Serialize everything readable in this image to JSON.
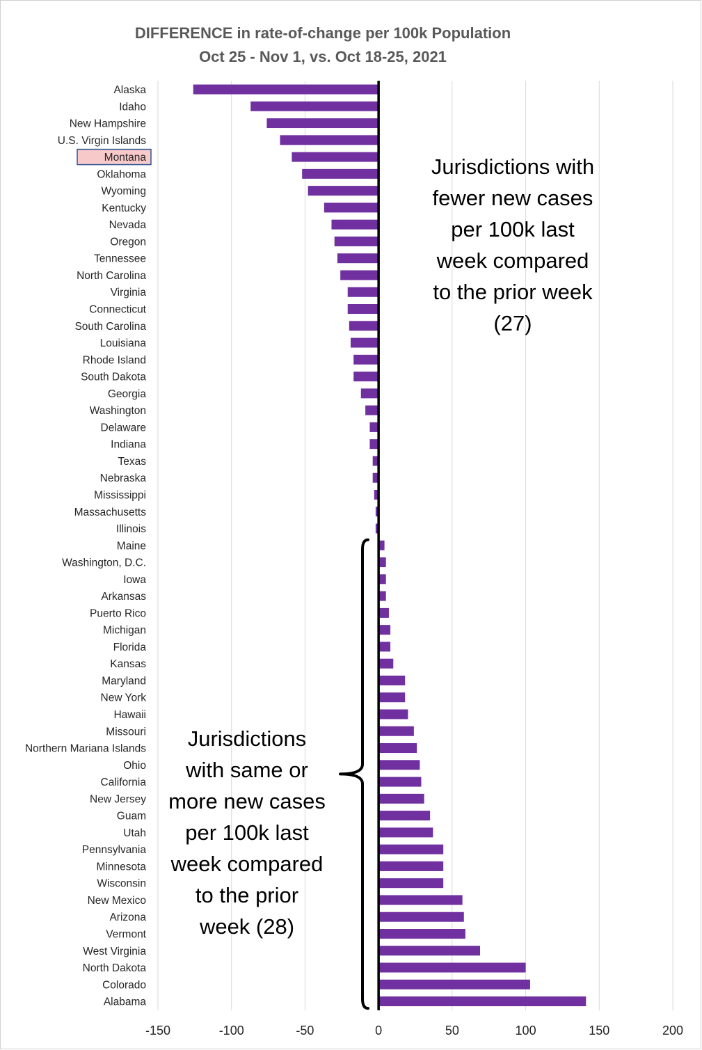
{
  "chart_data": {
    "type": "bar",
    "orientation": "horizontal",
    "title": "DIFFERENCE in rate-of-change per 100k Population",
    "subtitle": "Oct 25 - Nov 1, vs. Oct 18-25, 2021",
    "xlim": [
      -150,
      200
    ],
    "xticks": [
      "-150",
      "-100",
      "-50",
      "0",
      "50",
      "100",
      "150",
      "200"
    ],
    "xtick_values": [
      -150,
      -100,
      -50,
      0,
      50,
      100,
      150,
      200
    ],
    "grid": true,
    "bar_color": "#7030a0",
    "highlight_color": "#f8c9c9",
    "highlighted_category": "Montana",
    "categories": [
      "Alaska",
      "Idaho",
      "New Hampshire",
      "U.S. Virgin Islands",
      "Montana",
      "Oklahoma",
      "Wyoming",
      "Kentucky",
      "Nevada",
      "Oregon",
      "Tennessee",
      "North Carolina",
      "Virginia",
      "Connecticut",
      "South Carolina",
      "Louisiana",
      "Rhode Island",
      "South Dakota",
      "Georgia",
      "Washington",
      "Delaware",
      "Indiana",
      "Texas",
      "Nebraska",
      "Mississippi",
      "Massachusetts",
      "Illinois",
      "Maine",
      "Washington, D.C.",
      "Iowa",
      "Arkansas",
      "Puerto Rico",
      "Michigan",
      "Florida",
      "Kansas",
      "Maryland",
      "New York",
      "Hawaii",
      "Missouri",
      "Northern Mariana Islands",
      "Ohio",
      "California",
      "New Jersey",
      "Guam",
      "Utah",
      "Pennsylvania",
      "Minnesota",
      "Wisconsin",
      "New Mexico",
      "Arizona",
      "Vermont",
      "West Virginia",
      "North Dakota",
      "Colorado",
      "Alabama"
    ],
    "values": [
      -126,
      -87,
      -76,
      -67,
      -59,
      -52,
      -48,
      -37,
      -32,
      -30,
      -28,
      -26,
      -21,
      -21,
      -20,
      -19,
      -17,
      -17,
      -12,
      -9,
      -6,
      -6,
      -4,
      -4,
      -3,
      -2,
      -2,
      4,
      5,
      5,
      5,
      7,
      8,
      8,
      10,
      18,
      18,
      20,
      24,
      26,
      28,
      29,
      31,
      35,
      37,
      44,
      44,
      44,
      57,
      58,
      59,
      69,
      100,
      103,
      141
    ],
    "annotations": {
      "fewer": [
        "Jurisdictions with",
        "fewer new cases",
        "per 100k last",
        "week compared",
        "to the prior week",
        "(27)"
      ],
      "more": [
        "Jurisdictions",
        "with same or",
        "more new cases",
        "per 100k last",
        "week compared",
        "to the prior",
        "week (28)"
      ]
    }
  }
}
